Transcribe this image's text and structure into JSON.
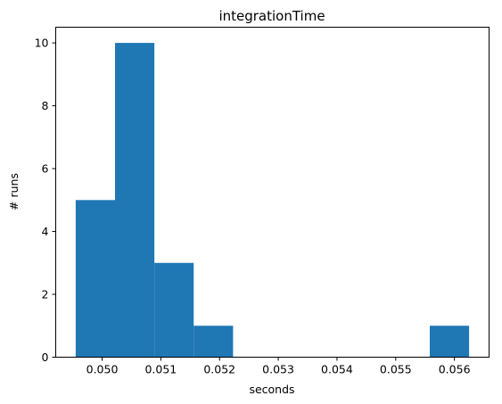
{
  "chart_data": {
    "type": "bar",
    "title": "integrationTime",
    "xlabel": "seconds",
    "ylabel": "# runs",
    "bar_color": "#1f77b4",
    "bins": [
      {
        "x0": 0.04955,
        "x1": 0.05022,
        "count": 5
      },
      {
        "x0": 0.05022,
        "x1": 0.05089,
        "count": 10
      },
      {
        "x0": 0.05089,
        "x1": 0.05156,
        "count": 3
      },
      {
        "x0": 0.05156,
        "x1": 0.05223,
        "count": 1
      },
      {
        "x0": 0.05223,
        "x1": 0.0529,
        "count": 0
      },
      {
        "x0": 0.0529,
        "x1": 0.05357,
        "count": 0
      },
      {
        "x0": 0.05357,
        "x1": 0.05424,
        "count": 0
      },
      {
        "x0": 0.05424,
        "x1": 0.05491,
        "count": 0
      },
      {
        "x0": 0.05491,
        "x1": 0.05558,
        "count": 0
      },
      {
        "x0": 0.05558,
        "x1": 0.05625,
        "count": 1
      }
    ],
    "xlim": [
      0.04921,
      0.05659
    ],
    "ylim": [
      0,
      10.5
    ],
    "x_ticks": [
      {
        "value": 0.05,
        "label": "0.050"
      },
      {
        "value": 0.051,
        "label": "0.051"
      },
      {
        "value": 0.052,
        "label": "0.052"
      },
      {
        "value": 0.053,
        "label": "0.053"
      },
      {
        "value": 0.054,
        "label": "0.054"
      },
      {
        "value": 0.055,
        "label": "0.055"
      },
      {
        "value": 0.056,
        "label": "0.056"
      }
    ],
    "y_ticks": [
      {
        "value": 0,
        "label": "0"
      },
      {
        "value": 2,
        "label": "2"
      },
      {
        "value": 4,
        "label": "4"
      },
      {
        "value": 6,
        "label": "6"
      },
      {
        "value": 8,
        "label": "8"
      },
      {
        "value": 10,
        "label": "10"
      }
    ],
    "grid": false,
    "legend": "none"
  }
}
